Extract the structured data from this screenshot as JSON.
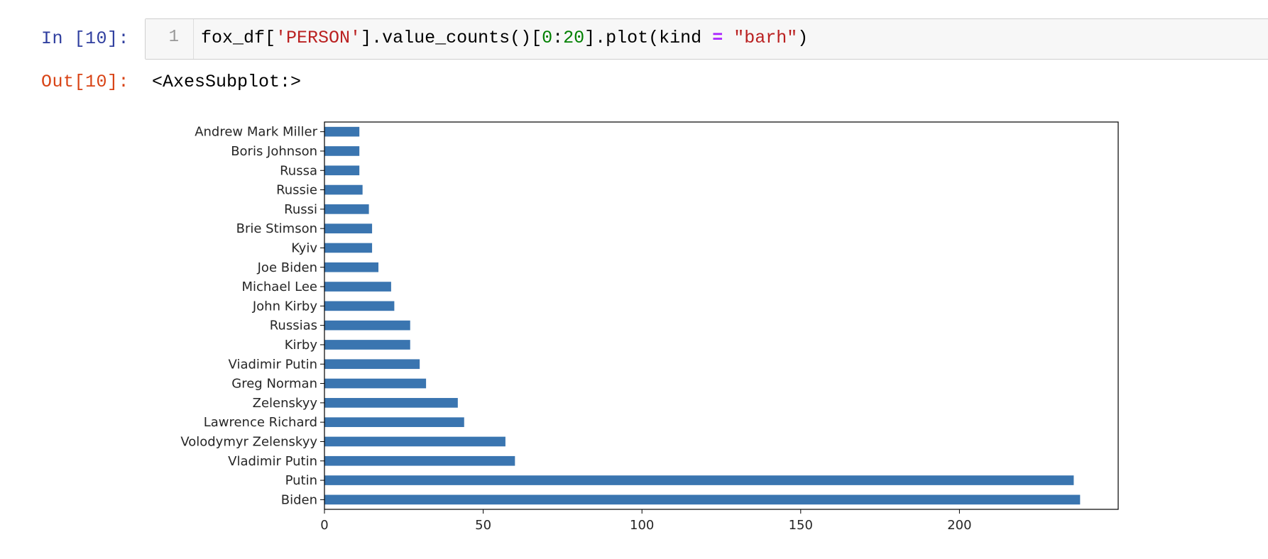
{
  "cell": {
    "in_prompt": "In [10]:",
    "out_prompt": "Out[10]:",
    "line_number": "1",
    "code_tokens": {
      "t1": "fox_df[",
      "t2": "'PERSON'",
      "t3": "].value_counts()[",
      "t4": "0",
      "t5": ":",
      "t6": "20",
      "t7": "].plot(kind ",
      "t8": "=",
      "t9": " ",
      "t10": "\"barh\"",
      "t11": ")"
    },
    "output_text": "<AxesSubplot:>"
  },
  "chart_data": {
    "type": "bar",
    "orientation": "horizontal",
    "bar_color": "#3a75b0",
    "categories": [
      "Andrew Mark Miller",
      "Boris Johnson",
      "Russa",
      "Russie",
      "Russi",
      "Brie Stimson",
      "Kyiv",
      "Joe Biden",
      "Michael Lee",
      "John Kirby",
      "Russias",
      "Kirby",
      "Viadimir Putin",
      "Greg Norman",
      "Zelenskyy",
      "Lawrence Richard",
      "Volodymyr Zelenskyy",
      "Vladimir Putin",
      "Putin",
      "Biden"
    ],
    "values": [
      11,
      11,
      11,
      12,
      14,
      15,
      15,
      17,
      21,
      22,
      27,
      27,
      30,
      32,
      42,
      44,
      57,
      60,
      236,
      238
    ],
    "xticks": [
      "0",
      "50",
      "100",
      "150",
      "200"
    ],
    "xlim": [
      0,
      250
    ],
    "title": "",
    "xlabel": "",
    "ylabel": "",
    "grid": false,
    "legend": "none"
  }
}
